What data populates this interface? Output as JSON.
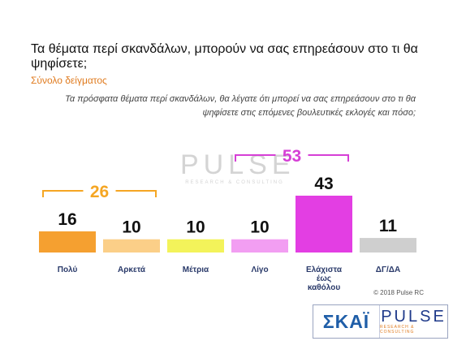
{
  "title": "Τα θέματα περί σκανδάλων, μπορούν να σας επηρεάσουν στο τι θα ψηφίσετε;",
  "subtitle": "Σύνολο δείγματος",
  "question": "Τα πρόσφατα θέματα περί σκανδάλων, θα λέγατε ότι μπορεί να σας επηρεάσουν στο τι θα ψηφίσετε στις επόμενες βουλευτικές εκλογές και πόσο;",
  "watermark": {
    "name": "PULSE",
    "sub": "RESEARCH & CONSULTING"
  },
  "copyright": "© 2018 Pulse RC",
  "logos": {
    "skai": "ΣΚΑΪ",
    "pulse": "PULSE",
    "pulse_sub": "RESEARCH & CONSULTING"
  },
  "colors": {
    "orange_group": "#f5a623",
    "magenta_group": "#d63fd6"
  },
  "chart_data": {
    "type": "bar",
    "title": "Τα θέματα περί σκανδάλων, μπορούν να σας επηρεάσουν στο τι θα ψηφίσετε;",
    "categories": [
      "Πολύ",
      "Αρκετά",
      "Μέτρια",
      "Λίγο",
      "Ελάχιστα έως καθόλου",
      "ΔΓ/ΔΑ"
    ],
    "category_lines": [
      [
        "Πολύ"
      ],
      [
        "Αρκετά"
      ],
      [
        "Μέτρια"
      ],
      [
        "Λίγο"
      ],
      [
        "Ελάχιστα",
        "έως",
        "καθόλου"
      ],
      [
        "ΔΓ/ΔΑ"
      ]
    ],
    "values": [
      16,
      10,
      10,
      10,
      43,
      11
    ],
    "bar_colors": [
      "#f5a030",
      "#fbcf88",
      "#f3f35a",
      "#f29ef2",
      "#e33ee3",
      "#cfcfcf"
    ],
    "groups": [
      {
        "label": "26",
        "value": 26,
        "from": 0,
        "to": 1,
        "color": "#f5a623"
      },
      {
        "label": "53",
        "value": 53,
        "from": 3,
        "to": 4,
        "color": "#d63fd6"
      }
    ],
    "xlabel": "",
    "ylabel": "",
    "ylim": [
      0,
      60
    ],
    "grid": false,
    "legend": "none"
  }
}
